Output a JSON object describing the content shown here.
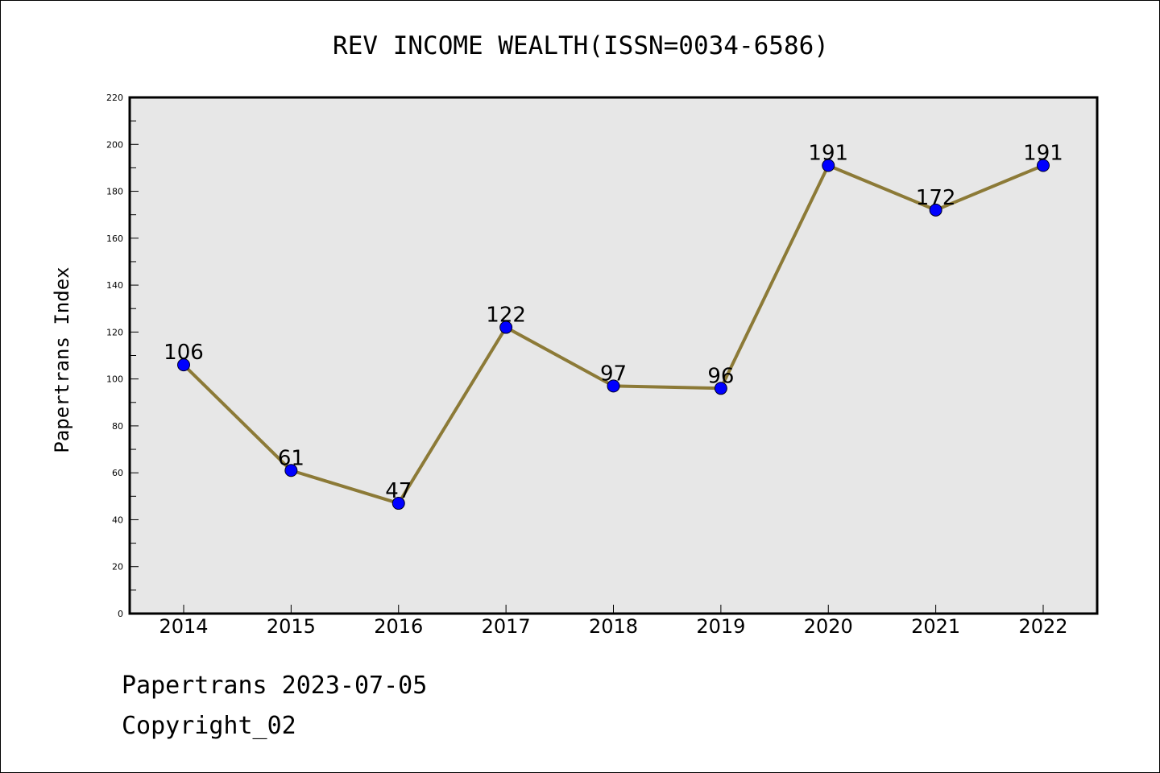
{
  "chart_data": {
    "type": "line",
    "title": "REV INCOME WEALTH(ISSN=0034-6586)",
    "xlabel": "",
    "ylabel": "Papertrans Index",
    "categories": [
      "2014",
      "2015",
      "2016",
      "2017",
      "2018",
      "2019",
      "2020",
      "2021",
      "2022"
    ],
    "values": [
      106,
      61,
      47,
      122,
      97,
      96,
      191,
      172,
      191
    ],
    "data_labels": [
      "106",
      "61",
      "47",
      "122",
      "97",
      "96",
      "191",
      "172",
      "191"
    ],
    "ylim": [
      0,
      220
    ],
    "yticks": [
      0,
      20,
      40,
      60,
      80,
      100,
      120,
      140,
      160,
      180,
      200,
      220
    ],
    "yticks_labels": [
      "0",
      "20",
      "40",
      "60",
      "80",
      "100",
      "120",
      "140",
      "160",
      "180",
      "200",
      "220"
    ],
    "grid": false,
    "legend": "none",
    "colors": {
      "line": "#8c7a37",
      "marker": "#0000ff",
      "plot_background": "#e7e7e7",
      "frame": "#000000"
    }
  },
  "footer": {
    "line1": "Papertrans 2023-07-05",
    "line2": "Copyright_02"
  }
}
